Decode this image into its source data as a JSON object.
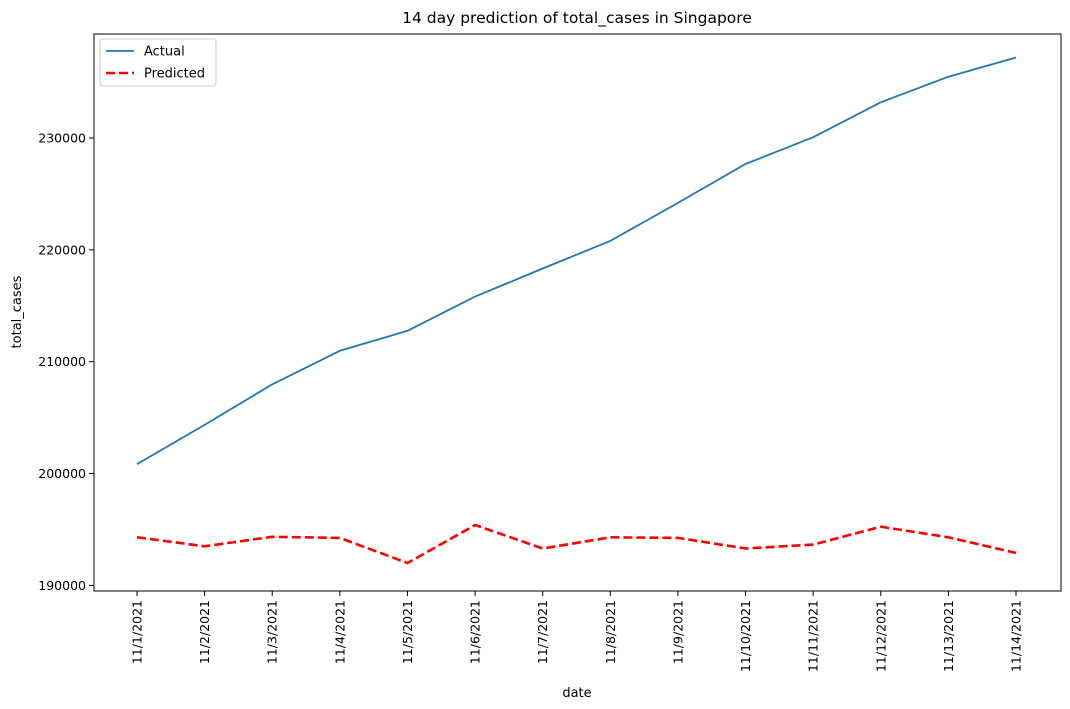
{
  "chart_data": {
    "type": "line",
    "title": "14 day prediction of total_cases in Singapore",
    "xlabel": "date",
    "ylabel": "total_cases",
    "categories": [
      "11/1/2021",
      "11/2/2021",
      "11/3/2021",
      "11/4/2021",
      "11/5/2021",
      "11/6/2021",
      "11/7/2021",
      "11/8/2021",
      "11/9/2021",
      "11/10/2021",
      "11/11/2021",
      "11/12/2021",
      "11/13/2021",
      "11/14/2021"
    ],
    "yticks": [
      190000,
      200000,
      210000,
      220000,
      230000
    ],
    "ytick_labels": [
      "190000",
      "200000",
      "210000",
      "220000",
      "230000"
    ],
    "ylim": [
      189500,
      239300
    ],
    "grid": false,
    "legend_position": "upper-left",
    "series": [
      {
        "name": "Actual",
        "color": "#1f77b4",
        "style": "solid",
        "values": [
          200844,
          204350,
          207975,
          210978,
          212762,
          215823,
          218333,
          220803,
          224200,
          227681,
          230077,
          233192,
          235480,
          237203
        ]
      },
      {
        "name": "Predicted",
        "color": "#ff0000",
        "style": "dashed",
        "values": [
          194300,
          193500,
          194350,
          194250,
          192000,
          195400,
          193300,
          194300,
          194250,
          193300,
          193650,
          195250,
          194300,
          192900
        ]
      }
    ]
  }
}
